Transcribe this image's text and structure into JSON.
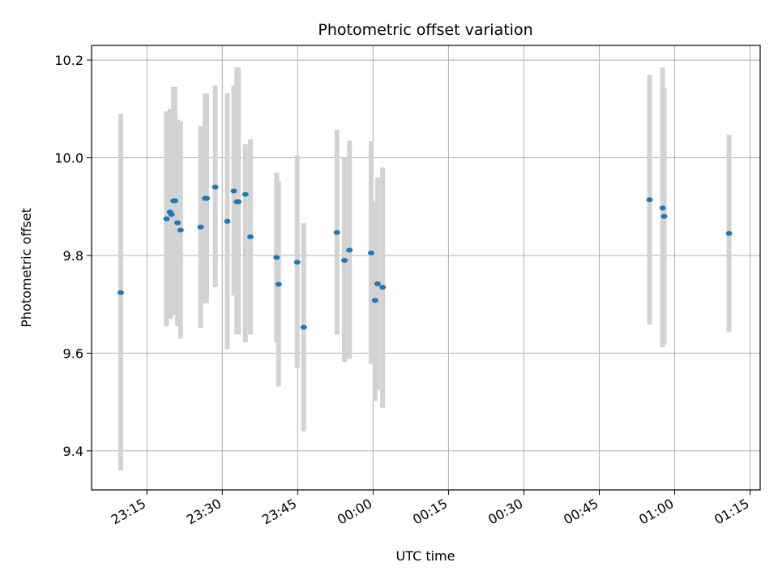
{
  "chart_data": {
    "type": "scatter",
    "title": "Photometric offset variation",
    "xlabel": "UTC time",
    "ylabel": "Photometric offset",
    "x_unit": "UTC time (HH:MM:SS)",
    "x_ticks": [
      "23:15",
      "23:30",
      "23:45",
      "00:00",
      "00:15",
      "00:30",
      "00:45",
      "01:00",
      "01:15"
    ],
    "y_ticks": [
      "9.4",
      "9.6",
      "9.8",
      "10.0",
      "10.2"
    ],
    "xlim": [
      "23:04:00",
      "01:17:00"
    ],
    "ylim": [
      9.32,
      10.23
    ],
    "grid": true,
    "error_bar_color": "#d3d3d3",
    "marker_color": "#1f77b4",
    "series": [
      {
        "points": [
          {
            "t": "23:09:48",
            "y": 9.724,
            "lo": 9.36,
            "hi": 10.09
          },
          {
            "t": "23:18:54",
            "y": 9.875,
            "lo": 9.655,
            "hi": 10.095
          },
          {
            "t": "23:19:36",
            "y": 9.889,
            "lo": 9.67,
            "hi": 10.1
          },
          {
            "t": "23:19:54",
            "y": 9.884,
            "lo": 9.675,
            "hi": 10.1
          },
          {
            "t": "23:20:18",
            "y": 9.912,
            "lo": 9.68,
            "hi": 10.145
          },
          {
            "t": "23:20:36",
            "y": 9.912,
            "lo": 9.685,
            "hi": 10.145
          },
          {
            "t": "23:21:06",
            "y": 9.867,
            "lo": 9.655,
            "hi": 10.078
          },
          {
            "t": "23:21:42",
            "y": 9.852,
            "lo": 9.63,
            "hi": 10.075
          },
          {
            "t": "23:25:42",
            "y": 9.858,
            "lo": 9.652,
            "hi": 10.065
          },
          {
            "t": "23:26:36",
            "y": 9.917,
            "lo": 9.702,
            "hi": 10.132
          },
          {
            "t": "23:26:54",
            "y": 9.917,
            "lo": 9.702,
            "hi": 10.132
          },
          {
            "t": "23:28:36",
            "y": 9.94,
            "lo": 9.735,
            "hi": 10.148
          },
          {
            "t": "23:31:00",
            "y": 9.87,
            "lo": 9.608,
            "hi": 10.132
          },
          {
            "t": "23:32:18",
            "y": 9.932,
            "lo": 9.718,
            "hi": 10.148
          },
          {
            "t": "23:32:54",
            "y": 9.91,
            "lo": 9.638,
            "hi": 10.185
          },
          {
            "t": "23:33:12",
            "y": 9.91,
            "lo": 9.638,
            "hi": 10.185
          },
          {
            "t": "23:34:36",
            "y": 9.925,
            "lo": 9.622,
            "hi": 10.028
          },
          {
            "t": "23:35:36",
            "y": 9.838,
            "lo": 9.638,
            "hi": 10.038
          },
          {
            "t": "23:40:48",
            "y": 9.796,
            "lo": 9.622,
            "hi": 9.97
          },
          {
            "t": "23:41:12",
            "y": 9.741,
            "lo": 9.532,
            "hi": 9.952
          },
          {
            "t": "23:44:54",
            "y": 9.786,
            "lo": 9.57,
            "hi": 10.005
          },
          {
            "t": "23:46:12",
            "y": 9.653,
            "lo": 9.44,
            "hi": 9.866
          },
          {
            "t": "23:52:48",
            "y": 9.847,
            "lo": 9.638,
            "hi": 10.057
          },
          {
            "t": "23:54:18",
            "y": 9.79,
            "lo": 9.582,
            "hi": 10.0
          },
          {
            "t": "23:55:18",
            "y": 9.811,
            "lo": 9.588,
            "hi": 10.035
          },
          {
            "t": "23:59:36",
            "y": 9.805,
            "lo": 9.578,
            "hi": 10.034
          },
          {
            "t": "00:00:24",
            "y": 9.708,
            "lo": 9.502,
            "hi": 9.91
          },
          {
            "t": "00:00:54",
            "y": 9.742,
            "lo": 9.525,
            "hi": 9.96
          },
          {
            "t": "00:01:54",
            "y": 9.735,
            "lo": 9.488,
            "hi": 9.98
          },
          {
            "t": "00:55:00",
            "y": 9.914,
            "lo": 9.658,
            "hi": 10.17
          },
          {
            "t": "00:57:36",
            "y": 9.897,
            "lo": 9.612,
            "hi": 10.185
          },
          {
            "t": "00:57:54",
            "y": 9.88,
            "lo": 9.618,
            "hi": 10.142
          },
          {
            "t": "01:10:48",
            "y": 9.845,
            "lo": 9.643,
            "hi": 10.047
          }
        ]
      }
    ]
  }
}
